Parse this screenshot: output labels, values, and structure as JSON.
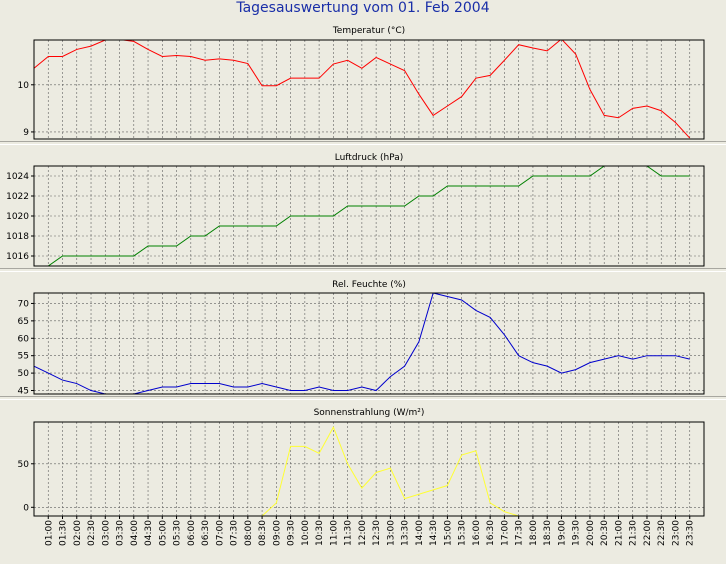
{
  "page_title": "Tagesauswertung vom 01. Feb 2004",
  "time_labels": [
    "01:00",
    "01:30",
    "02:00",
    "02:30",
    "03:00",
    "03:30",
    "04:00",
    "04:30",
    "05:00",
    "05:30",
    "06:00",
    "06:30",
    "07:00",
    "07:30",
    "08:00",
    "08:30",
    "09:00",
    "09:30",
    "10:00",
    "10:30",
    "11:00",
    "11:30",
    "12:00",
    "12:30",
    "13:00",
    "13:30",
    "14:00",
    "14:30",
    "15:00",
    "15:30",
    "16:00",
    "16:30",
    "17:00",
    "17:30",
    "18:00",
    "18:30",
    "19:00",
    "19:30",
    "20:00",
    "20:30",
    "21:00",
    "21:30",
    "22:00",
    "22:30",
    "23:00",
    "23:30"
  ],
  "colors": {
    "background": "#ecebe1",
    "title": "#1a2fa8",
    "grid": "#606060",
    "temperature": "#ff0000",
    "pressure": "#008000",
    "humidity": "#0000cc",
    "solar": "#ffff33"
  },
  "chart_data": [
    {
      "type": "line",
      "title": "Temperatur (°C)",
      "ylim": [
        8.85,
        10.95
      ],
      "yticks": [
        9,
        10
      ],
      "x": [
        "00:30",
        "01:00",
        "01:30",
        "02:00",
        "02:30",
        "03:00",
        "03:30",
        "04:00",
        "04:30",
        "05:00",
        "05:30",
        "06:00",
        "06:30",
        "07:00",
        "07:30",
        "08:00",
        "08:30",
        "09:00",
        "09:30",
        "10:00",
        "10:30",
        "11:00",
        "11:30",
        "12:00",
        "12:30",
        "13:00",
        "13:30",
        "14:00",
        "14:30",
        "15:00",
        "15:30",
        "16:00",
        "16:30",
        "17:00",
        "17:30",
        "18:00",
        "18:30",
        "19:00",
        "19:30",
        "20:00",
        "20:30",
        "21:00",
        "21:30",
        "22:00",
        "22:30",
        "23:00",
        "23:30"
      ],
      "series": [
        {
          "color": "#ff0000",
          "values": [
            10.35,
            10.6,
            10.6,
            10.75,
            10.82,
            10.95,
            10.96,
            10.92,
            10.75,
            10.6,
            10.62,
            10.6,
            10.52,
            10.55,
            10.52,
            10.45,
            9.98,
            9.98,
            10.14,
            10.14,
            10.14,
            10.44,
            10.52,
            10.35,
            10.58,
            10.44,
            10.3,
            9.8,
            9.35,
            9.55,
            9.75,
            10.14,
            10.2,
            10.52,
            10.85,
            10.78,
            10.72,
            10.97,
            10.65,
            9.9,
            9.35,
            9.3,
            9.5,
            9.55,
            9.45,
            9.2,
            8.87
          ]
        }
      ]
    },
    {
      "type": "line",
      "title": "Luftdruck (hPa)",
      "ylim": [
        1015,
        1025
      ],
      "yticks": [
        1016,
        1018,
        1020,
        1022,
        1024
      ],
      "x": [
        "00:30",
        "01:00",
        "01:30",
        "02:00",
        "02:30",
        "03:00",
        "03:30",
        "04:00",
        "04:30",
        "05:00",
        "05:30",
        "06:00",
        "06:30",
        "07:00",
        "07:30",
        "08:00",
        "08:30",
        "09:00",
        "09:30",
        "10:00",
        "10:30",
        "11:00",
        "11:30",
        "12:00",
        "12:30",
        "13:00",
        "13:30",
        "14:00",
        "14:30",
        "15:00",
        "15:30",
        "16:00",
        "16:30",
        "17:00",
        "17:30",
        "18:00",
        "18:30",
        "19:00",
        "19:30",
        "20:00",
        "20:30",
        "21:00",
        "21:30",
        "22:00",
        "22:30",
        "23:00",
        "23:30"
      ],
      "series": [
        {
          "color": "#008000",
          "values": [
            1015,
            1015,
            1016,
            1016,
            1016,
            1016,
            1016,
            1016,
            1017,
            1017,
            1017,
            1018,
            1018,
            1019,
            1019,
            1019,
            1019,
            1019,
            1020,
            1020,
            1020,
            1020,
            1021,
            1021,
            1021,
            1021,
            1021,
            1022,
            1022,
            1023,
            1023,
            1023,
            1023,
            1023,
            1023,
            1024,
            1024,
            1024,
            1024,
            1024,
            1025,
            1025,
            1025,
            1025,
            1024,
            1024,
            1024
          ]
        }
      ]
    },
    {
      "type": "line",
      "title": "Rel. Feuchte (%)",
      "ylim": [
        44,
        73
      ],
      "yticks": [
        45,
        50,
        55,
        60,
        65,
        70
      ],
      "x": [
        "00:30",
        "01:00",
        "01:30",
        "02:00",
        "02:30",
        "03:00",
        "03:30",
        "04:00",
        "04:30",
        "05:00",
        "05:30",
        "06:00",
        "06:30",
        "07:00",
        "07:30",
        "08:00",
        "08:30",
        "09:00",
        "09:30",
        "10:00",
        "10:30",
        "11:00",
        "11:30",
        "12:00",
        "12:30",
        "13:00",
        "13:30",
        "14:00",
        "14:30",
        "15:00",
        "15:30",
        "16:00",
        "16:30",
        "17:00",
        "17:30",
        "18:00",
        "18:30",
        "19:00",
        "19:30",
        "20:00",
        "20:30",
        "21:00",
        "21:30",
        "22:00",
        "22:30",
        "23:00",
        "23:30"
      ],
      "series": [
        {
          "color": "#0000cc",
          "values": [
            52,
            50,
            48,
            47,
            45,
            44,
            44,
            44,
            45,
            46,
            46,
            47,
            47,
            47,
            46,
            46,
            47,
            46,
            45,
            45,
            46,
            45,
            45,
            46,
            45,
            49,
            52,
            59,
            73,
            72,
            71,
            68,
            66,
            61,
            55,
            53,
            52,
            50,
            51,
            53,
            54,
            55,
            54,
            55,
            55,
            55,
            54
          ]
        }
      ]
    },
    {
      "type": "line",
      "title": "Sonnenstrahlung (W/m²)",
      "ylim": [
        -10,
        98
      ],
      "yticks": [
        0,
        50
      ],
      "x": [
        "00:30",
        "01:00",
        "01:30",
        "02:00",
        "02:30",
        "03:00",
        "03:30",
        "04:00",
        "04:30",
        "05:00",
        "05:30",
        "06:00",
        "06:30",
        "07:00",
        "07:30",
        "08:00",
        "08:30",
        "09:00",
        "09:30",
        "10:00",
        "10:30",
        "11:00",
        "11:30",
        "12:00",
        "12:30",
        "13:00",
        "13:30",
        "14:00",
        "14:30",
        "15:00",
        "15:30",
        "16:00",
        "16:30",
        "17:00",
        "17:30",
        "18:00",
        "18:30",
        "19:00",
        "19:30",
        "20:00",
        "20:30",
        "21:00",
        "21:30",
        "22:00",
        "22:30",
        "23:00",
        "23:30"
      ],
      "series": [
        {
          "color": "#ffff33",
          "values": [
            -10,
            -10,
            -10,
            -10,
            -10,
            -10,
            -10,
            -10,
            -10,
            -10,
            -10,
            -10,
            -10,
            -10,
            -10,
            -10,
            -10,
            5,
            70,
            70,
            62,
            92,
            50,
            22,
            40,
            45,
            10,
            15,
            20,
            25,
            60,
            65,
            5,
            -5,
            -10,
            -10,
            -10,
            -10,
            -10,
            -10,
            -10,
            -10,
            -10,
            -10,
            -10,
            -10,
            -10
          ]
        }
      ]
    }
  ]
}
